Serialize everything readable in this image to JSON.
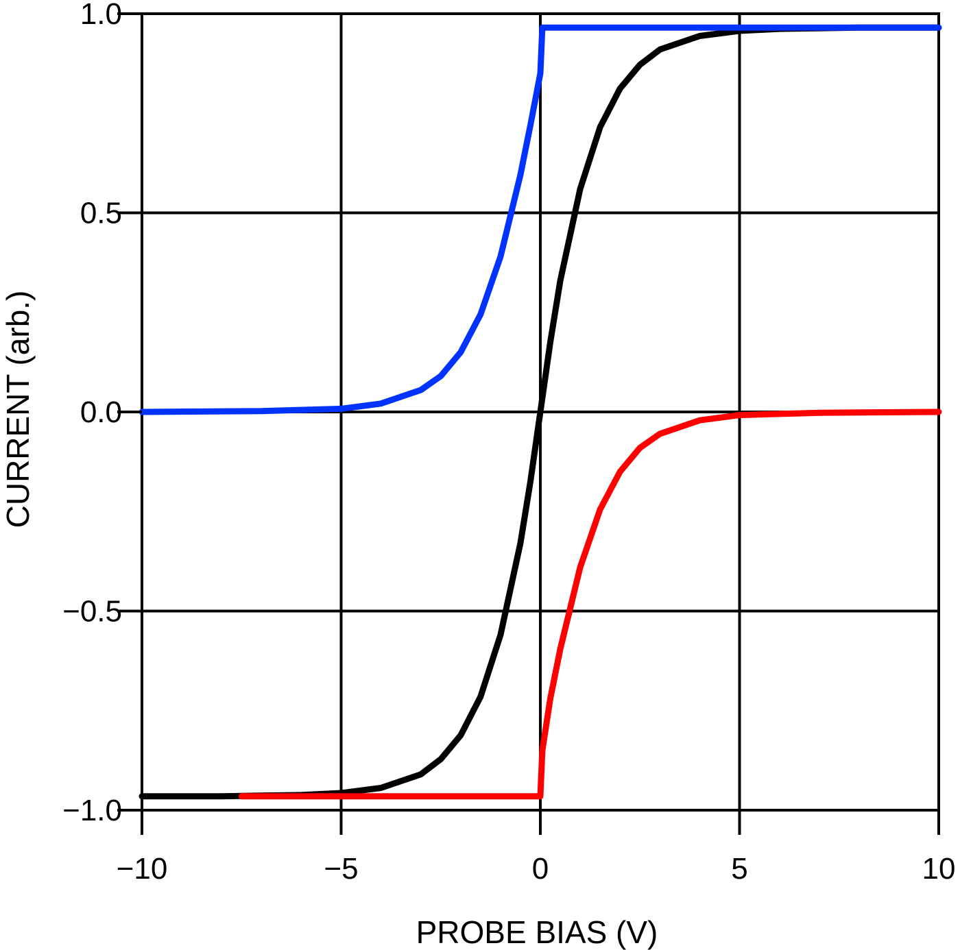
{
  "chart_data": {
    "type": "line",
    "title": "",
    "xlabel": "PROBE BIAS (V)",
    "ylabel": "CURRENT (arb.)",
    "xlim": [
      -10,
      10
    ],
    "ylim": [
      -1.0,
      1.0
    ],
    "grid": true,
    "legend": "none",
    "x_ticks": [
      {
        "value": -10,
        "label": "−10"
      },
      {
        "value": -5,
        "label": "−5"
      },
      {
        "value": 0,
        "label": "0"
      },
      {
        "value": 5,
        "label": "5"
      },
      {
        "value": 10,
        "label": "10"
      }
    ],
    "y_ticks": [
      {
        "value": 1.0,
        "label": "1.0"
      },
      {
        "value": 0.5,
        "label": "0.5"
      },
      {
        "value": 0.0,
        "label": "0.0"
      },
      {
        "value": -0.5,
        "label": "−0.5"
      },
      {
        "value": -1.0,
        "label": "−1.0"
      }
    ],
    "series": [
      {
        "color": "#000000",
        "x": [
          -10,
          -8,
          -6,
          -5,
          -4,
          -3,
          -2.5,
          -2,
          -1.5,
          -1,
          -0.5,
          -0.25,
          0,
          0.25,
          0.5,
          1,
          1.5,
          2,
          2.5,
          3,
          4,
          5,
          6,
          8,
          10
        ],
        "y": [
          -0.965,
          -0.965,
          -0.962,
          -0.957,
          -0.944,
          -0.91,
          -0.872,
          -0.812,
          -0.715,
          -0.56,
          -0.33,
          -0.175,
          0.0,
          0.175,
          0.33,
          0.56,
          0.715,
          0.812,
          0.872,
          0.91,
          0.944,
          0.957,
          0.962,
          0.965,
          0.965
        ]
      },
      {
        "color": "#0033ff",
        "x": [
          -10,
          -7,
          -5,
          -4,
          -3,
          -2.5,
          -2,
          -1.5,
          -1,
          -0.5,
          -0.25,
          0,
          0.05,
          2,
          5,
          8,
          10
        ],
        "y": [
          0.0,
          0.002,
          0.008,
          0.021,
          0.055,
          0.09,
          0.15,
          0.245,
          0.39,
          0.595,
          0.72,
          0.85,
          0.965,
          0.965,
          0.965,
          0.965,
          0.965
        ]
      },
      {
        "color": "#ff0000",
        "x": [
          -7.5,
          -5,
          -2,
          0,
          0.05,
          0.25,
          0.5,
          1,
          1.5,
          2,
          2.5,
          3,
          4,
          5,
          7,
          10
        ],
        "y": [
          -0.965,
          -0.965,
          -0.965,
          -0.965,
          -0.85,
          -0.72,
          -0.595,
          -0.39,
          -0.245,
          -0.15,
          -0.09,
          -0.055,
          -0.021,
          -0.008,
          -0.002,
          0.0
        ]
      }
    ]
  }
}
